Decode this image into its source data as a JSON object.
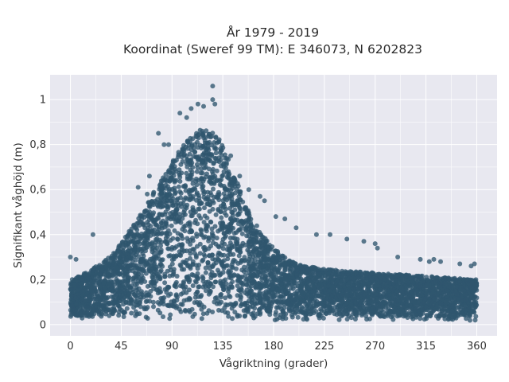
{
  "chart_data": {
    "type": "scatter",
    "title": "År 1979 - 2019",
    "subtitle": "Koordinat (Sweref 99 TM): E 346073, N 6202823",
    "xlabel": "Vågriktning (grader)",
    "ylabel": "Signifikant våghöjd (m)",
    "xlim": [
      -18,
      378
    ],
    "ylim": [
      -0.05,
      1.11
    ],
    "xticks": [
      0,
      45,
      90,
      135,
      180,
      225,
      270,
      315,
      360
    ],
    "xtick_labels": [
      "0",
      "45",
      "90",
      "135",
      "180",
      "225",
      "270",
      "315",
      "360"
    ],
    "yticks": [
      0,
      0.2,
      0.4,
      0.6,
      0.8,
      1
    ],
    "ytick_labels": [
      "0",
      "0,2",
      "0,4",
      "0,6",
      "0,8",
      "1"
    ],
    "grid": true,
    "colors": {
      "background": "#e8e8f0",
      "grid": "#ffffff",
      "point": "#2f566e"
    },
    "envelope": [
      [
        0,
        0.2
      ],
      [
        10,
        0.22
      ],
      [
        20,
        0.25
      ],
      [
        30,
        0.28
      ],
      [
        40,
        0.33
      ],
      [
        50,
        0.4
      ],
      [
        60,
        0.47
      ],
      [
        70,
        0.56
      ],
      [
        80,
        0.65
      ],
      [
        90,
        0.72
      ],
      [
        100,
        0.8
      ],
      [
        110,
        0.86
      ],
      [
        120,
        0.88
      ],
      [
        130,
        0.84
      ],
      [
        140,
        0.74
      ],
      [
        150,
        0.6
      ],
      [
        160,
        0.48
      ],
      [
        170,
        0.4
      ],
      [
        180,
        0.34
      ],
      [
        190,
        0.3
      ],
      [
        200,
        0.27
      ],
      [
        220,
        0.25
      ],
      [
        240,
        0.24
      ],
      [
        270,
        0.23
      ],
      [
        300,
        0.22
      ],
      [
        330,
        0.21
      ],
      [
        360,
        0.2
      ]
    ],
    "outliers": [
      [
        0,
        0.3
      ],
      [
        5,
        0.29
      ],
      [
        20,
        0.4
      ],
      [
        60,
        0.61
      ],
      [
        68,
        0.58
      ],
      [
        70,
        0.66
      ],
      [
        78,
        0.85
      ],
      [
        83,
        0.8
      ],
      [
        87,
        0.8
      ],
      [
        97,
        0.94
      ],
      [
        103,
        0.92
      ],
      [
        107,
        0.96
      ],
      [
        113,
        0.98
      ],
      [
        118,
        0.97
      ],
      [
        126,
        1.06
      ],
      [
        126,
        1.0
      ],
      [
        128,
        0.98
      ],
      [
        142,
        0.75
      ],
      [
        150,
        0.66
      ],
      [
        158,
        0.6
      ],
      [
        168,
        0.57
      ],
      [
        172,
        0.55
      ],
      [
        182,
        0.48
      ],
      [
        190,
        0.47
      ],
      [
        200,
        0.43
      ],
      [
        218,
        0.4
      ],
      [
        230,
        0.4
      ],
      [
        245,
        0.38
      ],
      [
        260,
        0.37
      ],
      [
        270,
        0.36
      ],
      [
        272,
        0.34
      ],
      [
        290,
        0.3
      ],
      [
        310,
        0.29
      ],
      [
        318,
        0.28
      ],
      [
        322,
        0.29
      ],
      [
        328,
        0.28
      ],
      [
        345,
        0.27
      ],
      [
        355,
        0.26
      ],
      [
        358,
        0.27
      ]
    ]
  }
}
